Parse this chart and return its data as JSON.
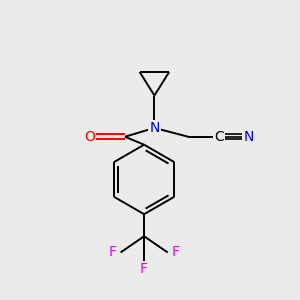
{
  "background_color": "#ebebeb",
  "bond_color": "#000000",
  "atom_colors": {
    "N": "#0000cc",
    "O": "#ff0000",
    "F": "#ee00ee",
    "C": "#000000"
  },
  "figsize": [
    3.0,
    3.0
  ],
  "dpi": 100,
  "xlim": [
    0,
    10
  ],
  "ylim": [
    0,
    10
  ]
}
